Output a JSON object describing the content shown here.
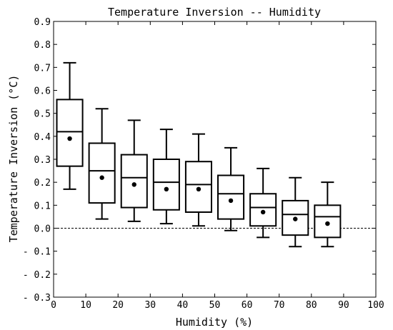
{
  "chart_data": {
    "type": "boxplot",
    "title": "Temperature Inversion -- Humidity",
    "xlabel": "Humidity (%)",
    "ylabel": "Temperature Inversion (°C)",
    "xlim": [
      0,
      100
    ],
    "ylim": [
      -0.3,
      0.9
    ],
    "xticks": [
      0,
      10,
      20,
      30,
      40,
      50,
      60,
      70,
      80,
      90,
      100
    ],
    "yticks": [
      -0.3,
      -0.2,
      -0.1,
      0.0,
      0.1,
      0.2,
      0.3,
      0.4,
      0.5,
      0.6,
      0.7,
      0.8,
      0.9
    ],
    "xtick_labels": [
      "0",
      "10",
      "20",
      "30",
      "40",
      "50",
      "60",
      "70",
      "80",
      "90",
      "100"
    ],
    "ytick_labels": [
      "- 0.3",
      "- 0.2",
      "- 0.1",
      "0.0",
      "0.1",
      "0.2",
      "0.3",
      "0.4",
      "0.5",
      "0.6",
      "0.7",
      "0.8",
      "0.9"
    ],
    "grid": false,
    "reference_line": {
      "y": 0.0,
      "style": "dashed"
    },
    "boxes": [
      {
        "x": 5,
        "whisker_low": 0.17,
        "q1": 0.27,
        "median": 0.42,
        "q3": 0.56,
        "whisker_high": 0.72,
        "mean": 0.39
      },
      {
        "x": 15,
        "whisker_low": 0.04,
        "q1": 0.11,
        "median": 0.25,
        "q3": 0.37,
        "whisker_high": 0.52,
        "mean": 0.22
      },
      {
        "x": 25,
        "whisker_low": 0.03,
        "q1": 0.09,
        "median": 0.22,
        "q3": 0.32,
        "whisker_high": 0.47,
        "mean": 0.19
      },
      {
        "x": 35,
        "whisker_low": 0.02,
        "q1": 0.08,
        "median": 0.2,
        "q3": 0.3,
        "whisker_high": 0.43,
        "mean": 0.17
      },
      {
        "x": 45,
        "whisker_low": 0.01,
        "q1": 0.07,
        "median": 0.19,
        "q3": 0.29,
        "whisker_high": 0.41,
        "mean": 0.17
      },
      {
        "x": 55,
        "whisker_low": -0.01,
        "q1": 0.04,
        "median": 0.15,
        "q3": 0.23,
        "whisker_high": 0.35,
        "mean": 0.12
      },
      {
        "x": 65,
        "whisker_low": -0.04,
        "q1": 0.01,
        "median": 0.09,
        "q3": 0.15,
        "whisker_high": 0.26,
        "mean": 0.07
      },
      {
        "x": 75,
        "whisker_low": -0.08,
        "q1": -0.03,
        "median": 0.06,
        "q3": 0.12,
        "whisker_high": 0.22,
        "mean": 0.04
      },
      {
        "x": 85,
        "whisker_low": -0.08,
        "q1": -0.04,
        "median": 0.05,
        "q3": 0.1,
        "whisker_high": 0.2,
        "mean": 0.02
      }
    ]
  }
}
